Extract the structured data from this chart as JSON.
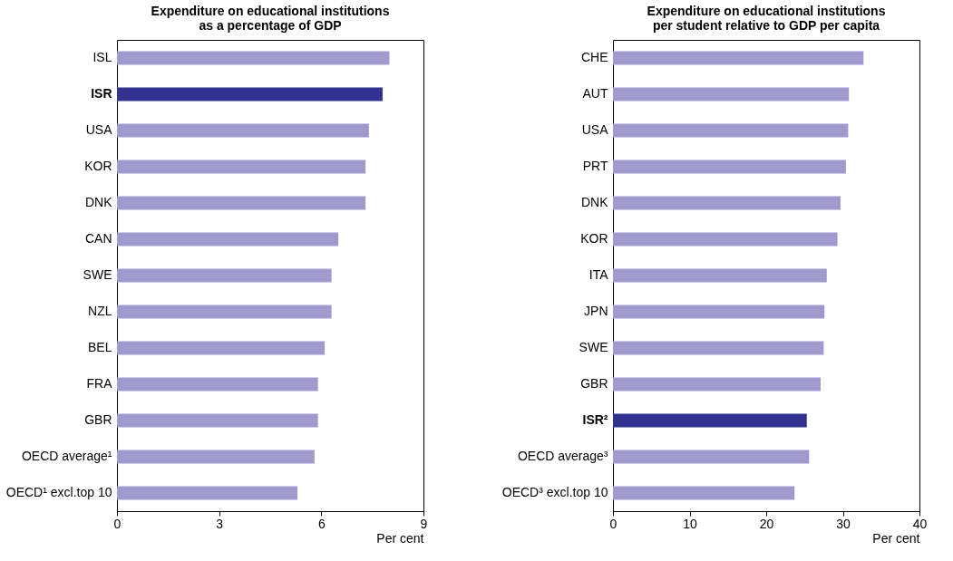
{
  "chart_data": [
    {
      "type": "bar",
      "orientation": "horizontal",
      "title": "Expenditure on educational institutions\nas a percentage of GDP",
      "xlabel": "Per cent",
      "categories": [
        "ISL",
        "ISR",
        "USA",
        "KOR",
        "DNK",
        "CAN",
        "SWE",
        "NZL",
        "BEL",
        "FRA",
        "GBR",
        "OECD average¹",
        "OECD¹ excl.top 10"
      ],
      "values": [
        8.0,
        7.8,
        7.4,
        7.3,
        7.3,
        6.5,
        6.3,
        6.3,
        6.1,
        5.9,
        5.9,
        5.8,
        5.3
      ],
      "colors": [
        "#a099cc",
        "#31318f",
        "#a099cc",
        "#a099cc",
        "#a099cc",
        "#a099cc",
        "#a099cc",
        "#a099cc",
        "#a099cc",
        "#a099cc",
        "#a099cc",
        "#a099cc",
        "#a099cc"
      ],
      "xlim": [
        0,
        9
      ],
      "xticks": [
        0,
        3,
        6,
        9
      ],
      "grid": false,
      "legend": false
    },
    {
      "type": "bar",
      "orientation": "horizontal",
      "title": "Expenditure on educational institutions\nper student relative to GDP per capita",
      "xlabel": "Per cent",
      "categories": [
        "CHE",
        "AUT",
        "USA",
        "PRT",
        "DNK",
        "KOR",
        "ITA",
        "JPN",
        "SWE",
        "GBR",
        "ISR²",
        "OECD average³",
        "OECD³ excl.top 10"
      ],
      "values": [
        32.7,
        30.8,
        30.7,
        30.4,
        29.7,
        29.3,
        27.9,
        27.6,
        27.5,
        27.1,
        25.3,
        25.6,
        23.7
      ],
      "colors": [
        "#a099cc",
        "#a099cc",
        "#a099cc",
        "#a099cc",
        "#a099cc",
        "#a099cc",
        "#a099cc",
        "#a099cc",
        "#a099cc",
        "#a099cc",
        "#31318f",
        "#a099cc",
        "#a099cc"
      ],
      "xlim": [
        0,
        40
      ],
      "xticks": [
        0,
        10,
        20,
        30,
        40
      ],
      "grid": false,
      "legend": false
    }
  ]
}
